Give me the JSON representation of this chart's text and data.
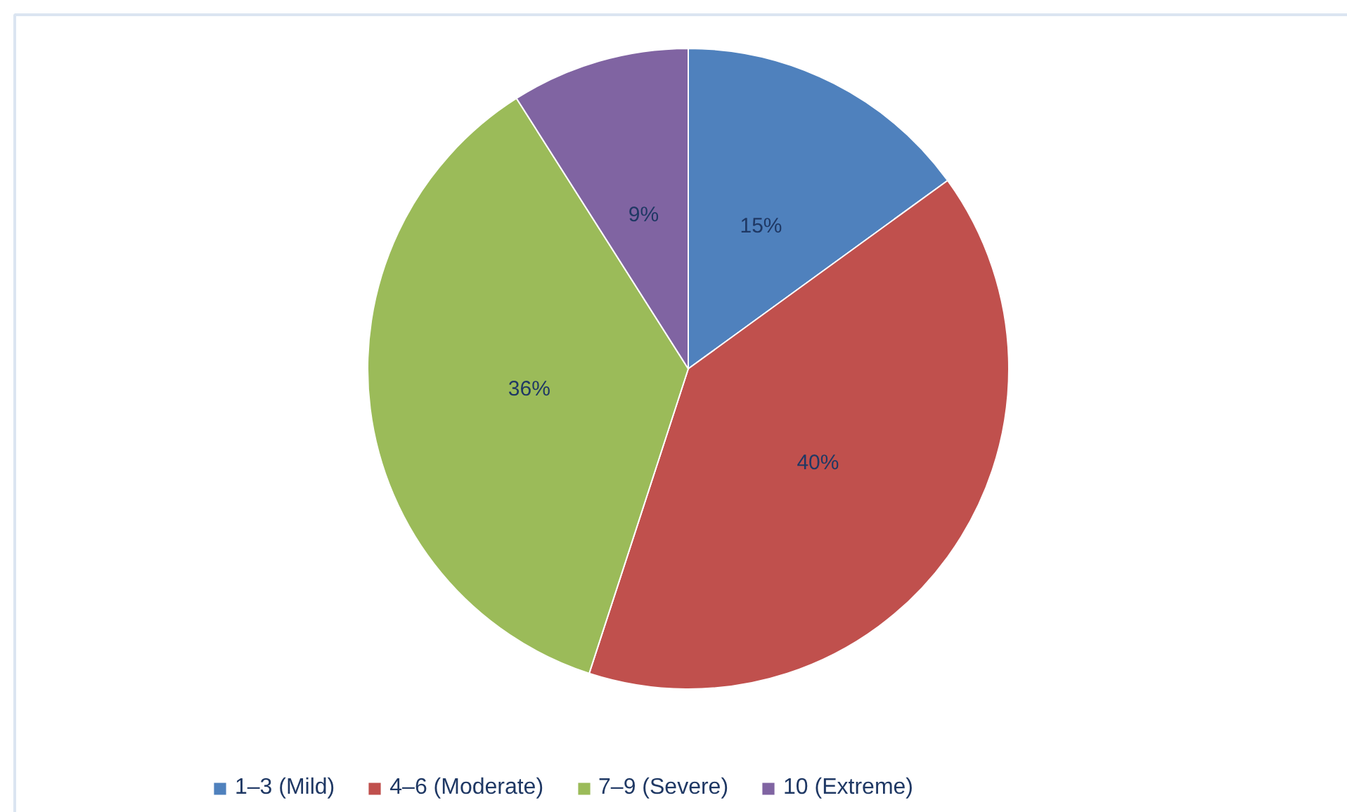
{
  "chart_data": {
    "type": "pie",
    "categories": [
      "1–3 (Mild)",
      "4–6 (Moderate)",
      "7–9 (Severe)",
      "10 (Extreme)"
    ],
    "values": [
      15,
      40,
      36,
      9
    ],
    "colors": [
      "#4f81bd",
      "#c0504d",
      "#9bbb59",
      "#8064a2"
    ],
    "value_labels": [
      "15%",
      "40%",
      "36%",
      "9%"
    ],
    "legend": "bottom"
  }
}
